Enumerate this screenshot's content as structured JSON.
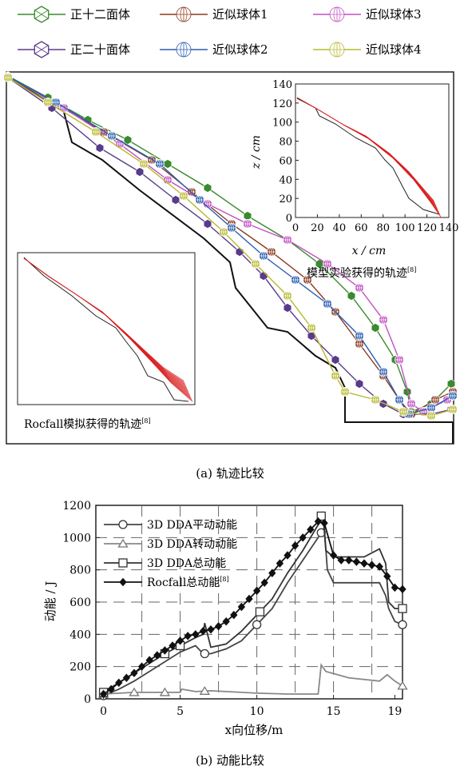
{
  "panel_a": {
    "legend": [
      {
        "label": "正十二面体",
        "color": "#3a8a2e",
        "marker": "dodecahedron"
      },
      {
        "label": "近似球体1",
        "color": "#8b3a1e",
        "marker": "sphere"
      },
      {
        "label": "近似球体3",
        "color": "#c050c0",
        "marker": "sphere"
      },
      {
        "label": "正二十面体",
        "color": "#5a3a8a",
        "marker": "icosahedron"
      },
      {
        "label": "近似球体2",
        "color": "#2a5cb0",
        "marker": "sphere"
      },
      {
        "label": "近似球体4",
        "color": "#b8b830",
        "marker": "sphere"
      }
    ],
    "caption": "(a) 轨迹比较",
    "inset_model": {
      "ylabel": "z / cm",
      "xlabel": "x / cm",
      "yticks": [
        "0",
        "20",
        "40",
        "60",
        "80",
        "100",
        "120",
        "140"
      ],
      "xticks": [
        "0",
        "20",
        "40",
        "60",
        "80",
        "100",
        "120",
        "140"
      ],
      "caption": "模型实验获得的轨迹",
      "ref": "[8]"
    },
    "inset_rocfall": {
      "caption": "Rocfall模拟获得的轨迹",
      "ref": "[8]"
    }
  },
  "chart_data": {
    "type": "line",
    "title": "",
    "caption": "(b) 动能比较",
    "xlabel": "x向位移/m",
    "ylabel": "动能 / J",
    "xlim": [
      -0.5,
      19.5
    ],
    "ylim": [
      0,
      1200
    ],
    "xticks": [
      {
        "value": 0,
        "label": "0"
      },
      {
        "value": 5,
        "label": "5"
      },
      {
        "value": 10,
        "label": "10"
      },
      {
        "value": 15,
        "label": "15"
      },
      {
        "value": 19,
        "label": "19"
      }
    ],
    "yticks": [
      "0",
      "200",
      "400",
      "600",
      "800",
      "1000",
      "1200"
    ],
    "grid": "dashed",
    "legend_position": "top-left",
    "series": [
      {
        "name": "3D DDA平动动能",
        "marker": "circle",
        "color": "#444444",
        "x": [
          0,
          1,
          2,
          3,
          4,
          5,
          6,
          6.5,
          7,
          8,
          9,
          10,
          11,
          12,
          13,
          14,
          14.4,
          14.6,
          15,
          16,
          17,
          18,
          18.4,
          18.6,
          19,
          19.5
        ],
        "y": [
          20,
          60,
          110,
          170,
          230,
          290,
          330,
          280,
          280,
          310,
          360,
          460,
          560,
          720,
          860,
          1000,
          1060,
          800,
          720,
          720,
          720,
          720,
          640,
          560,
          480,
          460
        ],
        "marker_x": [
          0,
          6.6,
          10,
          14.2,
          19.5
        ]
      },
      {
        "name": "3D DDA转动动能",
        "marker": "triangle",
        "color": "#888888",
        "x": [
          0,
          2,
          4,
          5,
          5.1,
          6,
          7,
          8,
          10,
          12,
          14,
          14.2,
          14.5,
          16,
          18,
          18.5,
          19,
          19.5
        ],
        "y": [
          30,
          40,
          40,
          40,
          60,
          45,
          50,
          45,
          35,
          30,
          30,
          210,
          170,
          130,
          110,
          150,
          110,
          80
        ],
        "marker_x": [
          0,
          2,
          4,
          6.6,
          19.5
        ]
      },
      {
        "name": "3D DDA总动能",
        "marker": "square",
        "color": "#333333",
        "x": [
          0,
          1,
          2,
          3,
          4,
          5,
          6,
          6.5,
          6.6,
          7,
          8,
          9,
          10,
          11,
          12,
          13,
          14,
          14.3,
          14.5,
          15,
          16,
          17,
          18,
          18.4,
          18.6,
          19,
          19.5
        ],
        "y": [
          40,
          100,
          160,
          220,
          280,
          330,
          380,
          400,
          470,
          320,
          340,
          420,
          520,
          620,
          780,
          920,
          1080,
          1160,
          920,
          880,
          880,
          880,
          930,
          840,
          600,
          560,
          560
        ],
        "marker_x": [
          0,
          4,
          5,
          10.2,
          14.2,
          19.5
        ]
      },
      {
        "name": "Rocfall总动能",
        "ref": "[8]",
        "marker": "filled-diamond",
        "color": "#111111",
        "x": [
          0,
          0.5,
          1,
          1.5,
          2,
          2.5,
          3,
          3.5,
          4,
          4.5,
          5,
          5.5,
          6,
          6.5,
          7,
          7.5,
          8,
          8.5,
          9,
          9.5,
          10,
          10.5,
          11,
          11.5,
          12,
          12.5,
          13,
          13.5,
          14,
          14.4,
          15,
          15.5,
          16,
          16.5,
          17,
          17.5,
          18,
          18.5,
          19,
          19.5
        ],
        "y": [
          30,
          60,
          100,
          130,
          160,
          200,
          240,
          270,
          300,
          330,
          360,
          390,
          400,
          420,
          430,
          450,
          480,
          520,
          570,
          620,
          670,
          720,
          780,
          840,
          890,
          950,
          1000,
          1050,
          1100,
          1090,
          890,
          860,
          860,
          850,
          840,
          830,
          820,
          760,
          690,
          680
        ]
      }
    ]
  }
}
